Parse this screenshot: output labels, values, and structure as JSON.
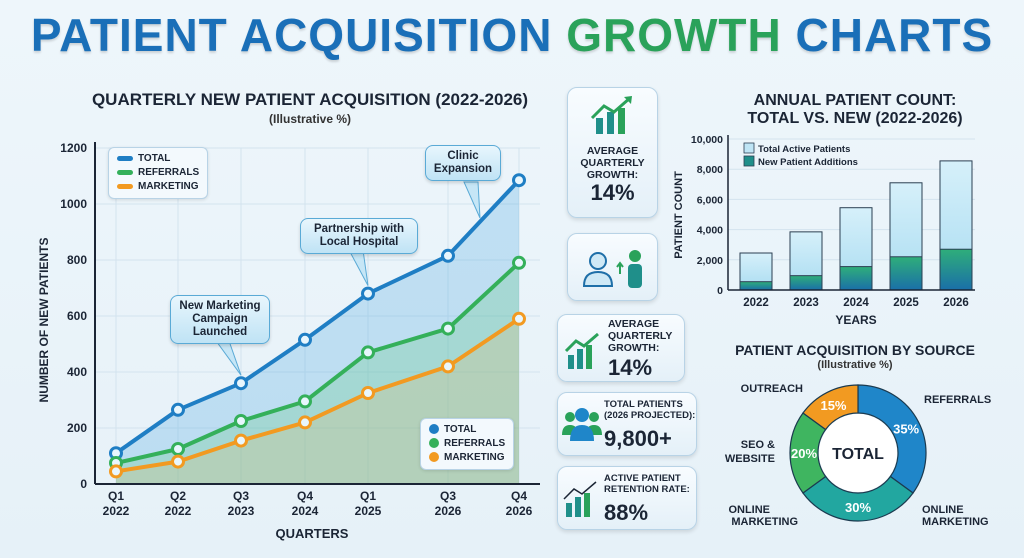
{
  "title": {
    "part1": "PATIENT ACQUISITION",
    "part2": "GROWTH",
    "part3": "CHARTS"
  },
  "colors": {
    "total": "#1f7ec4",
    "referrals": "#34b05a",
    "marketing": "#f29a21",
    "outreach": "#f29a21",
    "new_additions": "#1f8f8a",
    "total_active": "#bfe5f5"
  },
  "stats": [
    {
      "icon": "growth-chart-icon",
      "label": "AVERAGE QUARTERLY GROWTH:",
      "value": "14%"
    },
    {
      "icon": "doctor-patient-icon"
    },
    {
      "icon": "growth-chart-icon",
      "label": "AVERAGE QUARTERLY GROWTH:",
      "value": "14%"
    },
    {
      "icon": "people-group-icon",
      "label": "TOTAL PATIENTS (2026 PROJECTED):",
      "value": "9,800+"
    },
    {
      "icon": "growth-chart-icon",
      "label": "ACTIVE PATIENT RETENTION RATE:",
      "value": "88%"
    }
  ],
  "chart_data": [
    {
      "type": "line",
      "title": "QUARTERLY NEW PATIENT ACQUISITION (2022-2026)",
      "subtitle": "(Illustrative %)",
      "xlabel": "QUARTERS",
      "ylabel": "NUMBER OF NEW PATIENTS",
      "ylim": [
        0,
        1200
      ],
      "yticks": [
        "0",
        "200",
        "400",
        "600",
        "800",
        "1000",
        "1200"
      ],
      "categories": [
        [
          "Q1",
          "2022"
        ],
        [
          "Q2",
          "2022"
        ],
        [
          "Q3",
          "2023"
        ],
        [
          "Q4",
          "2024"
        ],
        [
          "Q1",
          "2025"
        ],
        [
          "Q3",
          "2026"
        ],
        [
          "Q4",
          "2026"
        ]
      ],
      "series": [
        {
          "name": "TOTAL",
          "values": [
            110,
            265,
            360,
            515,
            680,
            815,
            1085
          ]
        },
        {
          "name": "REFERRALS",
          "values": [
            75,
            125,
            225,
            295,
            470,
            555,
            790
          ]
        },
        {
          "name": "MARKETING",
          "values": [
            45,
            80,
            155,
            220,
            325,
            420,
            590
          ]
        }
      ],
      "annotations": [
        {
          "text": "New Marketing Campaign Launched",
          "at": "Q3 2023"
        },
        {
          "text": "Partnership with Local Hospital",
          "at": "Q1 2025"
        },
        {
          "text": "Clinic Expansion",
          "at": "Q4 2026"
        }
      ],
      "grid": true,
      "legend": [
        "top-left",
        "bottom-right"
      ]
    },
    {
      "type": "bar",
      "title": "ANNUAL PATIENT COUNT:",
      "subtitle": "TOTAL VS. NEW (2022-2026)",
      "xlabel": "YEARS",
      "ylabel": "PATIENT COUNT",
      "ylim": [
        0,
        10000
      ],
      "yticks": [
        "0",
        "2,000",
        "4,000",
        "6,000",
        "8,000",
        "10,000"
      ],
      "categories": [
        "2022",
        "2023",
        "2024",
        "2025",
        "2026"
      ],
      "series": [
        {
          "name": "Total Active Patients",
          "values": [
            2450,
            3850,
            5450,
            7100,
            8550
          ]
        },
        {
          "name": "New Patient Additions",
          "values": [
            550,
            950,
            1550,
            2200,
            2700
          ]
        }
      ],
      "grid": true,
      "legend": "top-left"
    },
    {
      "type": "pie",
      "title": "PATIENT ACQUISITION BY SOURCE",
      "subtitle": "(Illustrative %)",
      "center_label": "TOTAL",
      "slices": [
        {
          "name": "REFERRALS",
          "value": 35,
          "label": "35%",
          "color": "#1f86c9"
        },
        {
          "name": "ONLINE MARKETING",
          "value": 30,
          "label": "30%",
          "color": "#22a7a0"
        },
        {
          "name": "SEO & WEBSITE",
          "value": 20,
          "label": "20%",
          "color": "#3fb560"
        },
        {
          "name": "OUTREACH",
          "value": 15,
          "label": "15%",
          "color": "#f29a21"
        }
      ],
      "extra_outer_label": "ONLINE MARKETING"
    }
  ]
}
